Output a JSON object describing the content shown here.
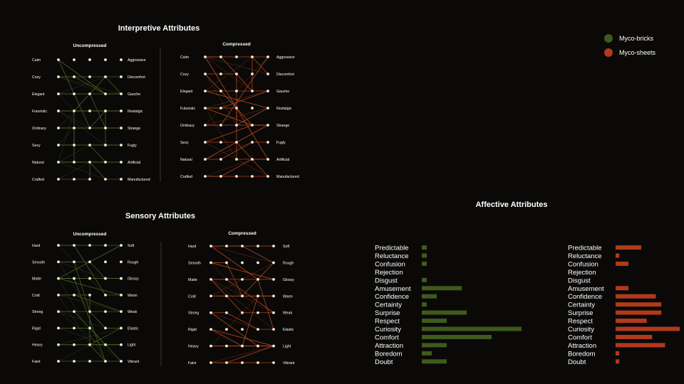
{
  "legend": {
    "bricks": {
      "label": "Myco-bricks",
      "color": "#3e5a1c"
    },
    "sheets": {
      "label": "Myco-sheets",
      "color": "#b03a1c"
    }
  },
  "chart_data": [
    {
      "type": "line",
      "title": "Interpretive Attributes",
      "subtitle": "Uncompressed",
      "series_name": "Myco-bricks",
      "color": "#4e6a26",
      "left_labels": [
        "Calm",
        "Cozy",
        "Elegant",
        "Futuristic",
        "Ordinary",
        "Sexy",
        "Natural",
        "Crafted"
      ],
      "right_labels": [
        "Aggressive",
        "Discomfort",
        "Gauche",
        "Nostalgic",
        "Strange",
        "Fugly",
        "Artificial",
        "Manufactured"
      ],
      "levels": 5,
      "links": [
        [
          0,
          0,
          3,
          2
        ],
        [
          0,
          0,
          2,
          4
        ],
        [
          1,
          1,
          3,
          2
        ],
        [
          2,
          2,
          3,
          1
        ],
        [
          2,
          2,
          1,
          3
        ],
        [
          3,
          0,
          3,
          3
        ],
        [
          3,
          3,
          2,
          4
        ],
        [
          3,
          3,
          3,
          5
        ],
        [
          4,
          3,
          2,
          2
        ],
        [
          4,
          4,
          4,
          4
        ],
        [
          5,
          3,
          2,
          5
        ],
        [
          6,
          1,
          1,
          3
        ],
        [
          6,
          2,
          4,
          6
        ],
        [
          6,
          2,
          3,
          7
        ],
        [
          6,
          3,
          2,
          5
        ],
        [
          7,
          2,
          2,
          6
        ],
        [
          1,
          3,
          4,
          2
        ],
        [
          5,
          1,
          1,
          4
        ]
      ]
    },
    {
      "type": "line",
      "title": "",
      "subtitle": "Compressed",
      "series_name": "Myco-sheets",
      "color": "#c24a20",
      "left_labels": [
        "Calm",
        "Cozy",
        "Elegant",
        "Futuristic",
        "Ordinary",
        "Sexy",
        "Natural",
        "Crafted"
      ],
      "right_labels": [
        "Aggressive",
        "Discomfort",
        "Gauche",
        "Nostalgic",
        "Strange",
        "Fugly",
        "Artificial",
        "Manufactured"
      ],
      "levels": 5,
      "links": [
        [
          0,
          0,
          4,
          6
        ],
        [
          0,
          1,
          3,
          2
        ],
        [
          1,
          0,
          3,
          4
        ],
        [
          1,
          2,
          2,
          4
        ],
        [
          2,
          0,
          4,
          3
        ],
        [
          2,
          3,
          3,
          0
        ],
        [
          3,
          1,
          4,
          2
        ],
        [
          3,
          0,
          3,
          4
        ],
        [
          4,
          2,
          4,
          3
        ],
        [
          4,
          1,
          4,
          0
        ],
        [
          5,
          0,
          3,
          4
        ],
        [
          5,
          2,
          4,
          7
        ],
        [
          6,
          0,
          4,
          4
        ],
        [
          6,
          1,
          3,
          5
        ],
        [
          7,
          0,
          2,
          7
        ],
        [
          7,
          1,
          3,
          6
        ],
        [
          0,
          3,
          4,
          1
        ],
        [
          3,
          2,
          2,
          6
        ]
      ]
    },
    {
      "type": "line",
      "title": "Sensory Attributes",
      "subtitle": "Uncompressed",
      "series_name": "Myco-bricks",
      "color": "#4e6a26",
      "left_labels": [
        "Hard",
        "Smooth",
        "Matte",
        "Cold",
        "Strong",
        "Rigid",
        "Heavy",
        "Faint"
      ],
      "right_labels": [
        "Soft",
        "Rough",
        "Glossy",
        "Warm",
        "Weak",
        "Elastic",
        "Light",
        "Vibrant"
      ],
      "levels": 5,
      "links": [
        [
          0,
          2,
          3,
          0
        ],
        [
          0,
          1,
          3,
          3
        ],
        [
          1,
          1,
          2,
          4
        ],
        [
          1,
          2,
          3,
          2
        ],
        [
          2,
          0,
          4,
          0
        ],
        [
          2,
          0,
          3,
          2
        ],
        [
          2,
          0,
          4,
          3
        ],
        [
          2,
          1,
          3,
          7
        ],
        [
          3,
          2,
          2,
          6
        ],
        [
          4,
          2,
          3,
          5
        ],
        [
          4,
          1,
          4,
          7
        ],
        [
          5,
          2,
          3,
          6
        ],
        [
          6,
          2,
          4,
          5
        ],
        [
          6,
          1,
          3,
          6
        ],
        [
          7,
          3,
          2,
          6
        ],
        [
          3,
          1,
          4,
          4
        ]
      ]
    },
    {
      "type": "line",
      "title": "",
      "subtitle": "Compressed",
      "series_name": "Myco-sheets",
      "color": "#c24a20",
      "left_labels": [
        "Hard",
        "Smooth",
        "Matte",
        "Cold",
        "Strong",
        "Rigid",
        "Heavy",
        "Faint"
      ],
      "right_labels": [
        "Soft",
        "Rough",
        "Glossy",
        "Warm",
        "Weak",
        "Elastic",
        "Light",
        "Vibrant"
      ],
      "levels": 5,
      "links": [
        [
          0,
          0,
          4,
          0
        ],
        [
          0,
          0,
          3,
          2
        ],
        [
          1,
          1,
          2,
          3
        ],
        [
          1,
          0,
          4,
          2
        ],
        [
          2,
          0,
          2,
          4
        ],
        [
          2,
          1,
          4,
          4
        ],
        [
          3,
          0,
          2,
          3
        ],
        [
          4,
          1,
          3,
          5
        ],
        [
          4,
          0,
          3,
          6
        ],
        [
          5,
          0,
          4,
          6
        ],
        [
          5,
          0,
          2,
          6
        ],
        [
          6,
          0,
          4,
          6
        ],
        [
          6,
          2,
          3,
          3
        ],
        [
          7,
          1,
          4,
          6
        ],
        [
          7,
          0,
          3,
          7
        ],
        [
          3,
          2,
          4,
          1
        ],
        [
          0,
          2,
          4,
          1
        ],
        [
          2,
          3,
          4,
          5
        ]
      ]
    },
    {
      "type": "bar",
      "orientation": "horizontal",
      "title": "Affective Attributes",
      "series_name": "Myco-bricks",
      "color": "#3e5a1c",
      "categories": [
        "Predictable",
        "Reluctance",
        "Confusion",
        "Rejection",
        "Disgust",
        "Amusement",
        "Confidence",
        "Certainty",
        "Surprise",
        "Respect",
        "Curiosity",
        "Comfort",
        "Attraction",
        "Boredom",
        "Doubt"
      ],
      "values": [
        2,
        2,
        2,
        0,
        2,
        16,
        6,
        2,
        18,
        10,
        40,
        28,
        10,
        4,
        10
      ],
      "xlim": [
        0,
        40
      ]
    },
    {
      "type": "bar",
      "orientation": "horizontal",
      "title": "",
      "series_name": "Myco-sheets",
      "color": "#b03a1c",
      "categories": [
        "Predictable",
        "Reluctance",
        "Confusion",
        "Rejection",
        "Disgust",
        "Amusement",
        "Confidence",
        "Certainty",
        "Surprise",
        "Respect",
        "Curiosity",
        "Comfort",
        "Attraction",
        "Boredom",
        "Doubt"
      ],
      "values": [
        14,
        2,
        7,
        0,
        0,
        7,
        22,
        25,
        25,
        17,
        35,
        20,
        27,
        2,
        2
      ],
      "xlim": [
        0,
        35
      ]
    }
  ]
}
